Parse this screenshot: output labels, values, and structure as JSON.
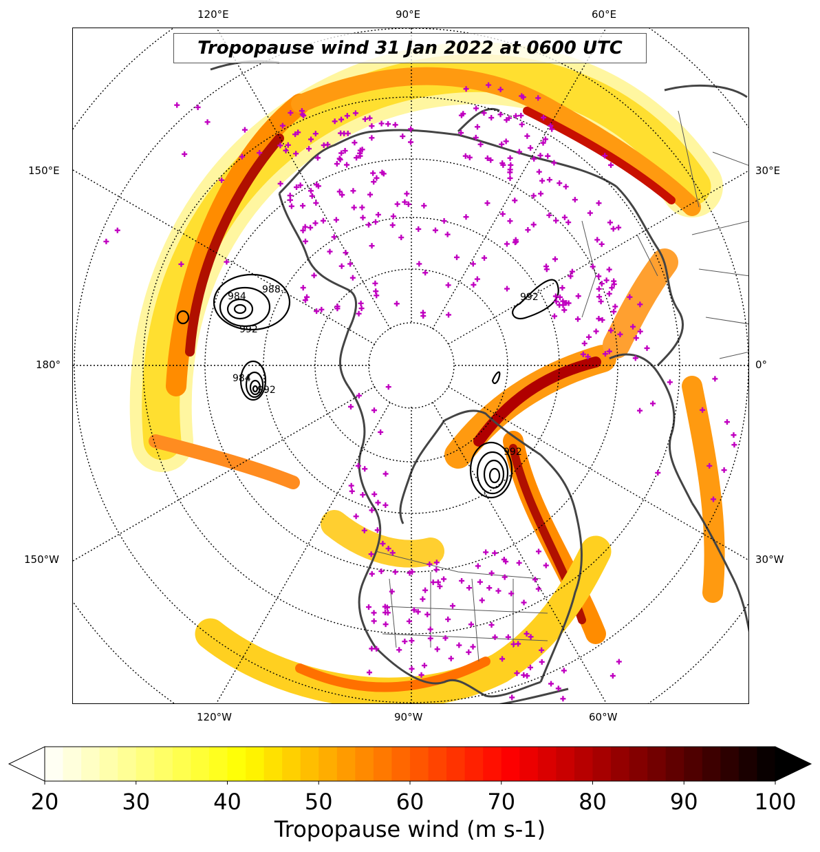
{
  "title": "Tropopause wind 31 Jan 2022 at 0600 UTC",
  "top_lon_labels": [
    "120°E",
    "90°E",
    "60°E"
  ],
  "bottom_lon_labels": [
    "120°W",
    "90°W",
    "60°W"
  ],
  "left_lon_labels": [
    "150°E",
    "180°",
    "150°W"
  ],
  "right_lon_labels": [
    "30°E",
    "0°",
    "30°W"
  ],
  "isobar_labels": [
    "984",
    "988",
    "992",
    "984",
    "992",
    "992",
    "992"
  ],
  "colorbar": {
    "label": "Tropopause wind (m s-1)",
    "min": 20,
    "max": 100,
    "step": 2,
    "ticks": [
      "20",
      "30",
      "40",
      "50",
      "60",
      "70",
      "80",
      "90",
      "100"
    ],
    "extend": "both",
    "colormap": "hot_r"
  },
  "colors": {
    "coastline": "#444444",
    "station_marker": "#c000c0",
    "isobar": "#000000"
  }
}
